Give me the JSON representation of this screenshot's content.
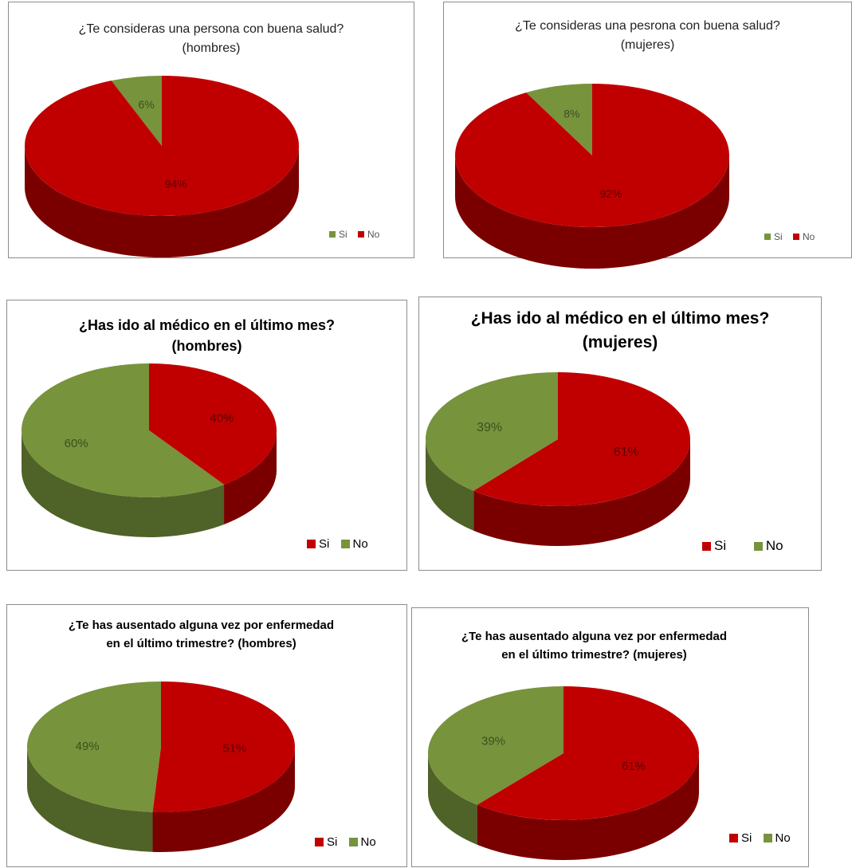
{
  "colors": {
    "si_top": "#c00000",
    "si_side": "#7a0000",
    "green_top": "#77933c",
    "green_side": "#4f6228",
    "label_on_green": "#3d4f1f",
    "label_on_red": "#5a0000"
  },
  "chart_data": [
    {
      "id": "c1",
      "type": "pie",
      "title": [
        "¿Te consideras una persona con buena salud?",
        "(hombres)"
      ],
      "categories": [
        "Si",
        "No"
      ],
      "values": [
        94,
        6
      ],
      "labels": [
        "94%",
        "6%"
      ],
      "legend_position": "bottom-right"
    },
    {
      "id": "c2",
      "type": "pie",
      "title": [
        "¿Te consideras una pesrona con buena salud?",
        "(mujeres)"
      ],
      "categories": [
        "Si",
        "No"
      ],
      "values": [
        92,
        8
      ],
      "labels": [
        "92%",
        "8%"
      ],
      "legend_position": "bottom-right"
    },
    {
      "id": "c3",
      "type": "pie",
      "title": [
        "¿Has ido al médico en el último mes?",
        "(hombres)"
      ],
      "categories": [
        "Si",
        "No"
      ],
      "values": [
        40,
        60
      ],
      "labels": [
        "40%",
        "60%"
      ],
      "legend_position": "bottom-right"
    },
    {
      "id": "c4",
      "type": "pie",
      "title": [
        "¿Has ido al médico en el último mes?",
        "(mujeres)"
      ],
      "categories": [
        "Si",
        "No"
      ],
      "values": [
        61,
        39
      ],
      "labels": [
        "61%",
        "39%"
      ],
      "legend_position": "bottom-right"
    },
    {
      "id": "c5",
      "type": "pie",
      "title": [
        "¿Te has ausentado alguna vez por enfermedad",
        "en el último trimestre? (hombres)"
      ],
      "categories": [
        "Si",
        "No"
      ],
      "values": [
        51,
        49
      ],
      "labels": [
        "51%",
        "49%"
      ],
      "legend_position": "bottom-right"
    },
    {
      "id": "c6",
      "type": "pie",
      "title": [
        "¿Te has ausentado alguna vez por enfermedad",
        "en el último trimestre? (mujeres)"
      ],
      "categories": [
        "Si",
        "No"
      ],
      "values": [
        61,
        39
      ],
      "labels": [
        "61%",
        "39%"
      ],
      "legend_position": "bottom-right"
    }
  ]
}
